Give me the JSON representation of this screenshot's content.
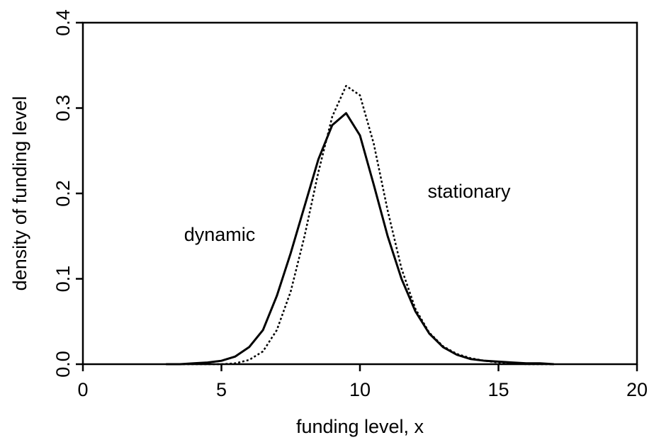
{
  "chart_data": {
    "type": "line",
    "x_label": "funding level, x",
    "y_label": "density of funding level",
    "x": [
      3,
      3.5,
      4,
      4.5,
      5,
      5.5,
      6,
      6.5,
      7,
      7.5,
      8,
      8.5,
      9,
      9.5,
      10,
      10.5,
      11,
      11.5,
      12,
      12.5,
      13,
      13.5,
      14,
      14.5,
      15,
      15.5,
      16,
      16.5,
      17
    ],
    "series": [
      {
        "name": "dynamic",
        "color": "#000000",
        "style": "solid",
        "values": [
          0.0,
          0.0,
          0.001,
          0.002,
          0.004,
          0.009,
          0.02,
          0.04,
          0.08,
          0.13,
          0.185,
          0.24,
          0.28,
          0.294,
          0.268,
          0.21,
          0.15,
          0.1,
          0.062,
          0.036,
          0.02,
          0.011,
          0.006,
          0.004,
          0.003,
          0.002,
          0.001,
          0.001,
          0.0
        ]
      },
      {
        "name": "stationary",
        "color": "#000000",
        "style": "dotted",
        "values": [
          0.0,
          0.0,
          0.0,
          0.0,
          0.0,
          0.001,
          0.005,
          0.015,
          0.04,
          0.085,
          0.15,
          0.225,
          0.29,
          0.326,
          0.315,
          0.258,
          0.18,
          0.112,
          0.065,
          0.037,
          0.021,
          0.012,
          0.007,
          0.004,
          0.002,
          0.001,
          0.0,
          0.0,
          0.0
        ]
      }
    ],
    "xlim": [
      0,
      20
    ],
    "ylim": [
      0,
      0.4
    ],
    "xticks": [
      0,
      5,
      10,
      15,
      20
    ],
    "yticks": [
      {
        "value": 0,
        "label": "0.0"
      },
      0.1,
      0.2,
      0.3,
      0.4
    ],
    "grid": false
  }
}
